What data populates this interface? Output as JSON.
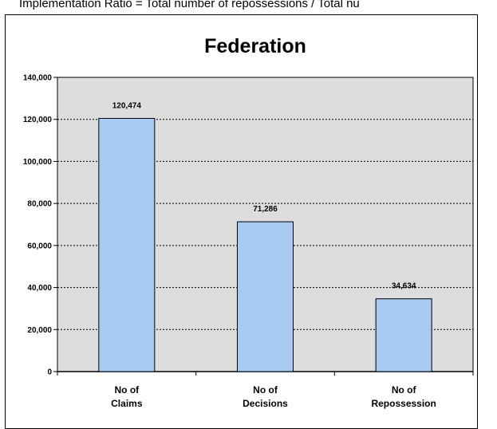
{
  "header_text": "Implementation Ratio = Total number of repossessions / Total nu",
  "chart_data": {
    "type": "bar",
    "title": "Federation",
    "categories": [
      [
        "No of",
        "Claims"
      ],
      [
        "No of",
        "Decisions"
      ],
      [
        "No of",
        "Repossession"
      ]
    ],
    "values": [
      120474,
      71286,
      34634
    ],
    "value_labels": [
      "120,474",
      "71,286",
      "34,634"
    ],
    "ylim": [
      0,
      140000
    ],
    "yticks": [
      0,
      20000,
      40000,
      60000,
      80000,
      100000,
      120000,
      140000
    ],
    "ytick_labels": [
      "0",
      "20,000",
      "40,000",
      "60,000",
      "80,000",
      "100,000",
      "120,000",
      "140,000"
    ],
    "xlabel": "",
    "ylabel": "",
    "grid": true,
    "colors": {
      "bar_fill": "#a6caf0",
      "plot_bg": "#dddddd",
      "bar_stroke": "#000000"
    }
  }
}
